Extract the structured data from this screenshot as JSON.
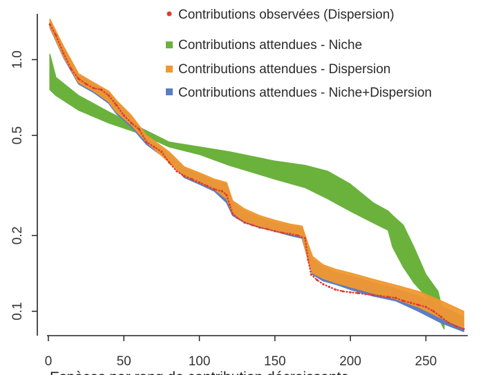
{
  "chart_data": {
    "type": "line",
    "title": "",
    "xlabel": "Espèces par rang de contribution décroissante",
    "ylabel": "",
    "yscale": "log",
    "xlim": [
      0,
      280
    ],
    "ylim": [
      0.08,
      1.6
    ],
    "x_ticks": [
      0,
      50,
      100,
      150,
      200,
      250
    ],
    "y_ticks": [
      0.1,
      0.2,
      0.5,
      1.0
    ],
    "x_tick_labels": [
      "0",
      "50",
      "100",
      "150",
      "200",
      "250"
    ],
    "y_tick_labels": [
      "0.1",
      "0.2",
      "0.5",
      "1.0"
    ],
    "legend_position": "top-right",
    "legend": [
      {
        "label": "Contributions observées (Dispersion)",
        "color": "#e03a2e",
        "marker": "circle"
      },
      {
        "label": "Contributions attendues - Niche",
        "color": "#6ab23c",
        "marker": "square"
      },
      {
        "label": "Contributions attendues - Dispersion",
        "color": "#f0982f",
        "marker": "square"
      },
      {
        "label": "Contributions attendues - Niche+Dispersion",
        "color": "#5b7ec3",
        "marker": "square"
      }
    ],
    "series": [
      {
        "name": "Contributions attendues - Niche",
        "kind": "band",
        "color": "#6ab23c",
        "x": [
          1,
          5,
          20,
          40,
          60,
          80,
          100,
          120,
          150,
          170,
          185,
          200,
          215,
          225,
          228,
          235,
          242,
          250,
          258,
          262
        ],
        "lower": [
          0.76,
          0.72,
          0.63,
          0.56,
          0.51,
          0.45,
          0.42,
          0.38,
          0.335,
          0.31,
          0.28,
          0.25,
          0.225,
          0.21,
          0.18,
          0.15,
          0.13,
          0.115,
          0.095,
          0.085
        ],
        "upper": [
          1.05,
          0.85,
          0.72,
          0.62,
          0.54,
          0.47,
          0.45,
          0.43,
          0.395,
          0.38,
          0.36,
          0.32,
          0.27,
          0.25,
          0.24,
          0.22,
          0.18,
          0.14,
          0.12,
          0.095
        ]
      },
      {
        "name": "Contributions attendues - Niche+Dispersion",
        "kind": "band",
        "color": "#5b7ec3",
        "x": [
          1,
          10,
          20,
          30,
          40,
          45,
          55,
          65,
          80,
          90,
          100,
          110,
          118,
          122,
          130,
          140,
          150,
          160,
          168,
          172,
          175,
          182,
          190,
          200,
          215,
          230,
          245,
          260,
          275
        ],
        "lower": [
          1.34,
          1.02,
          0.8,
          0.74,
          0.67,
          0.61,
          0.54,
          0.46,
          0.395,
          0.34,
          0.32,
          0.3,
          0.27,
          0.24,
          0.225,
          0.215,
          0.208,
          0.2,
          0.195,
          0.16,
          0.14,
          0.132,
          0.128,
          0.122,
          0.115,
          0.11,
          0.1,
          0.09,
          0.083
        ],
        "upper": [
          1.43,
          1.12,
          0.87,
          0.8,
          0.74,
          0.68,
          0.59,
          0.49,
          0.42,
          0.37,
          0.35,
          0.33,
          0.32,
          0.27,
          0.25,
          0.235,
          0.225,
          0.218,
          0.214,
          0.18,
          0.16,
          0.15,
          0.143,
          0.138,
          0.13,
          0.123,
          0.115,
          0.105,
          0.095
        ]
      },
      {
        "name": "Contributions attendues - Dispersion",
        "kind": "band",
        "color": "#f0982f",
        "x": [
          1,
          10,
          20,
          30,
          40,
          45,
          55,
          65,
          80,
          90,
          100,
          110,
          118,
          122,
          130,
          140,
          150,
          160,
          168,
          172,
          175,
          182,
          190,
          200,
          215,
          230,
          245,
          260,
          275
        ],
        "lower": [
          1.35,
          1.03,
          0.81,
          0.75,
          0.68,
          0.62,
          0.55,
          0.47,
          0.39,
          0.345,
          0.325,
          0.305,
          0.28,
          0.245,
          0.228,
          0.218,
          0.21,
          0.203,
          0.198,
          0.16,
          0.142,
          0.135,
          0.13,
          0.125,
          0.118,
          0.112,
          0.104,
          0.094,
          0.086
        ],
        "upper": [
          1.45,
          1.13,
          0.88,
          0.81,
          0.75,
          0.69,
          0.6,
          0.5,
          0.43,
          0.375,
          0.355,
          0.335,
          0.325,
          0.275,
          0.255,
          0.24,
          0.23,
          0.222,
          0.218,
          0.185,
          0.165,
          0.153,
          0.147,
          0.142,
          0.134,
          0.127,
          0.12,
          0.11,
          0.1
        ]
      },
      {
        "name": "Contributions observées (Dispersion)",
        "kind": "points",
        "color": "#e03a2e",
        "x": [
          1,
          5,
          10,
          15,
          20,
          25,
          30,
          35,
          40,
          45,
          50,
          55,
          60,
          65,
          70,
          75,
          80,
          85,
          90,
          95,
          100,
          105,
          110,
          115,
          118,
          120,
          122,
          125,
          130,
          135,
          140,
          145,
          150,
          155,
          160,
          165,
          170,
          172,
          174,
          178,
          182,
          186,
          190,
          195,
          200,
          205,
          210,
          215,
          220,
          225,
          230,
          235,
          240,
          245,
          250,
          255,
          260,
          265,
          270,
          275
        ],
        "y": [
          1.38,
          1.25,
          1.06,
          0.92,
          0.84,
          0.8,
          0.77,
          0.76,
          0.72,
          0.66,
          0.6,
          0.56,
          0.53,
          0.47,
          0.45,
          0.43,
          0.39,
          0.36,
          0.345,
          0.335,
          0.325,
          0.315,
          0.305,
          0.3,
          0.29,
          0.265,
          0.245,
          0.235,
          0.225,
          0.22,
          0.215,
          0.212,
          0.208,
          0.205,
          0.203,
          0.2,
          0.195,
          0.16,
          0.14,
          0.133,
          0.128,
          0.125,
          0.122,
          0.12,
          0.119,
          0.118,
          0.117,
          0.116,
          0.115,
          0.114,
          0.113,
          0.11,
          0.108,
          0.106,
          0.104,
          0.1,
          0.095,
          0.09,
          0.087,
          0.085
        ]
      }
    ]
  }
}
